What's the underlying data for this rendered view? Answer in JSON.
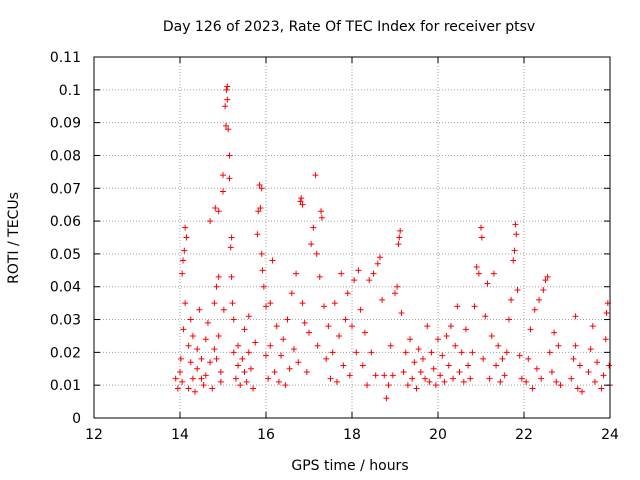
{
  "chart_data": {
    "type": "scatter",
    "title": "Day 126 of 2023, Rate Of TEC Index for receiver ptsv",
    "xlabel": "GPS time / hours",
    "ylabel": "ROTI / TECUs",
    "xlim": [
      12,
      24
    ],
    "ylim": [
      0,
      0.11
    ],
    "xticks": [
      "12",
      "14",
      "16",
      "18",
      "20",
      "22",
      "24"
    ],
    "yticks": [
      "0",
      "0.01",
      "0.02",
      "0.03",
      "0.04",
      "0.05",
      "0.06",
      "0.07",
      "0.08",
      "0.09",
      "0.1",
      "0.11"
    ],
    "grid": true,
    "marker": "plus",
    "color": "#ff0000",
    "series": [
      {
        "points": [
          [
            13.9,
            0.012
          ],
          [
            13.95,
            0.009
          ],
          [
            14.0,
            0.014
          ],
          [
            14.02,
            0.018
          ],
          [
            14.05,
            0.011
          ],
          [
            14.05,
            0.044
          ],
          [
            14.07,
            0.048
          ],
          [
            14.08,
            0.027
          ],
          [
            14.1,
            0.051
          ],
          [
            14.12,
            0.058
          ],
          [
            14.15,
            0.055
          ],
          [
            14.12,
            0.035
          ],
          [
            14.2,
            0.022
          ],
          [
            14.2,
            0.009
          ],
          [
            14.25,
            0.017
          ],
          [
            14.25,
            0.03
          ],
          [
            14.3,
            0.012
          ],
          [
            14.3,
            0.025
          ],
          [
            14.35,
            0.008
          ],
          [
            14.4,
            0.015
          ],
          [
            14.4,
            0.021
          ],
          [
            14.45,
            0.033
          ],
          [
            14.5,
            0.012
          ],
          [
            14.5,
            0.018
          ],
          [
            14.55,
            0.01
          ],
          [
            14.6,
            0.024
          ],
          [
            14.6,
            0.013
          ],
          [
            14.65,
            0.029
          ],
          [
            14.7,
            0.017
          ],
          [
            14.7,
            0.06
          ],
          [
            14.75,
            0.009
          ],
          [
            14.8,
            0.021
          ],
          [
            14.8,
            0.035
          ],
          [
            14.82,
            0.064
          ],
          [
            14.85,
            0.04
          ],
          [
            14.85,
            0.018
          ],
          [
            14.9,
            0.025
          ],
          [
            14.9,
            0.043
          ],
          [
            14.9,
            0.063
          ],
          [
            14.95,
            0.014
          ],
          [
            14.95,
            0.011
          ],
          [
            15.0,
            0.069
          ],
          [
            15.0,
            0.074
          ],
          [
            15.02,
            0.033
          ],
          [
            15.05,
            0.095
          ],
          [
            15.07,
            0.089
          ],
          [
            15.08,
            0.1
          ],
          [
            15.1,
            0.101
          ],
          [
            15.1,
            0.097
          ],
          [
            15.12,
            0.088
          ],
          [
            15.15,
            0.08
          ],
          [
            15.15,
            0.073
          ],
          [
            15.18,
            0.052
          ],
          [
            15.2,
            0.055
          ],
          [
            15.2,
            0.043
          ],
          [
            15.22,
            0.035
          ],
          [
            15.25,
            0.02
          ],
          [
            15.25,
            0.03
          ],
          [
            15.3,
            0.012
          ],
          [
            15.35,
            0.016
          ],
          [
            15.35,
            0.022
          ],
          [
            15.4,
            0.01
          ],
          [
            15.45,
            0.018
          ],
          [
            15.5,
            0.014
          ],
          [
            15.5,
            0.027
          ],
          [
            15.55,
            0.011
          ],
          [
            15.6,
            0.02
          ],
          [
            15.6,
            0.031
          ],
          [
            15.65,
            0.015
          ],
          [
            15.7,
            0.009
          ],
          [
            15.75,
            0.023
          ],
          [
            15.8,
            0.056
          ],
          [
            15.82,
            0.063
          ],
          [
            15.85,
            0.071
          ],
          [
            15.87,
            0.064
          ],
          [
            15.9,
            0.07
          ],
          [
            15.9,
            0.05
          ],
          [
            15.92,
            0.045
          ],
          [
            15.95,
            0.04
          ],
          [
            16.0,
            0.034
          ],
          [
            16.0,
            0.019
          ],
          [
            16.05,
            0.012
          ],
          [
            16.1,
            0.022
          ],
          [
            16.1,
            0.035
          ],
          [
            16.15,
            0.048
          ],
          [
            16.2,
            0.014
          ],
          [
            16.25,
            0.028
          ],
          [
            16.3,
            0.011
          ],
          [
            16.35,
            0.019
          ],
          [
            16.4,
            0.024
          ],
          [
            16.45,
            0.01
          ],
          [
            16.5,
            0.03
          ],
          [
            16.55,
            0.015
          ],
          [
            16.6,
            0.038
          ],
          [
            16.65,
            0.021
          ],
          [
            16.7,
            0.044
          ],
          [
            16.75,
            0.017
          ],
          [
            16.8,
            0.066
          ],
          [
            16.82,
            0.067
          ],
          [
            16.85,
            0.065
          ],
          [
            16.85,
            0.035
          ],
          [
            16.9,
            0.029
          ],
          [
            16.95,
            0.014
          ],
          [
            17.0,
            0.026
          ],
          [
            17.05,
            0.053
          ],
          [
            17.1,
            0.058
          ],
          [
            17.15,
            0.074
          ],
          [
            17.18,
            0.05
          ],
          [
            17.2,
            0.022
          ],
          [
            17.25,
            0.043
          ],
          [
            17.28,
            0.063
          ],
          [
            17.3,
            0.061
          ],
          [
            17.35,
            0.034
          ],
          [
            17.4,
            0.018
          ],
          [
            17.45,
            0.028
          ],
          [
            17.5,
            0.012
          ],
          [
            17.55,
            0.02
          ],
          [
            17.6,
            0.035
          ],
          [
            17.65,
            0.011
          ],
          [
            17.7,
            0.025
          ],
          [
            17.75,
            0.044
          ],
          [
            17.8,
            0.016
          ],
          [
            17.85,
            0.03
          ],
          [
            17.9,
            0.038
          ],
          [
            17.95,
            0.013
          ],
          [
            18.0,
            0.028
          ],
          [
            18.05,
            0.042
          ],
          [
            18.1,
            0.02
          ],
          [
            18.15,
            0.045
          ],
          [
            18.2,
            0.033
          ],
          [
            18.25,
            0.016
          ],
          [
            18.3,
            0.026
          ],
          [
            18.35,
            0.01
          ],
          [
            18.4,
            0.042
          ],
          [
            18.45,
            0.02
          ],
          [
            18.5,
            0.044
          ],
          [
            18.55,
            0.013
          ],
          [
            18.6,
            0.047
          ],
          [
            18.65,
            0.049
          ],
          [
            18.7,
            0.036
          ],
          [
            18.75,
            0.013
          ],
          [
            18.8,
            0.006
          ],
          [
            18.85,
            0.01
          ],
          [
            18.9,
            0.022
          ],
          [
            18.95,
            0.013
          ],
          [
            19.0,
            0.038
          ],
          [
            19.05,
            0.04
          ],
          [
            19.08,
            0.053
          ],
          [
            19.1,
            0.055
          ],
          [
            19.12,
            0.057
          ],
          [
            19.15,
            0.032
          ],
          [
            19.2,
            0.014
          ],
          [
            19.25,
            0.02
          ],
          [
            19.3,
            0.01
          ],
          [
            19.35,
            0.024
          ],
          [
            19.4,
            0.012
          ],
          [
            19.45,
            0.017
          ],
          [
            19.5,
            0.009
          ],
          [
            19.55,
            0.021
          ],
          [
            19.6,
            0.014
          ],
          [
            19.65,
            0.018
          ],
          [
            19.7,
            0.012
          ],
          [
            19.75,
            0.028
          ],
          [
            19.8,
            0.011
          ],
          [
            19.85,
            0.02
          ],
          [
            19.9,
            0.015
          ],
          [
            19.95,
            0.01
          ],
          [
            20.0,
            0.024
          ],
          [
            20.05,
            0.013
          ],
          [
            20.1,
            0.019
          ],
          [
            20.15,
            0.011
          ],
          [
            20.2,
            0.025
          ],
          [
            20.25,
            0.016
          ],
          [
            20.3,
            0.028
          ],
          [
            20.35,
            0.012
          ],
          [
            20.4,
            0.022
          ],
          [
            20.45,
            0.034
          ],
          [
            20.5,
            0.014
          ],
          [
            20.55,
            0.02
          ],
          [
            20.6,
            0.011
          ],
          [
            20.65,
            0.027
          ],
          [
            20.7,
            0.016
          ],
          [
            20.75,
            0.012
          ],
          [
            20.8,
            0.02
          ],
          [
            20.85,
            0.034
          ],
          [
            20.9,
            0.046
          ],
          [
            20.95,
            0.044
          ],
          [
            21.0,
            0.058
          ],
          [
            21.02,
            0.055
          ],
          [
            21.05,
            0.018
          ],
          [
            21.1,
            0.031
          ],
          [
            21.15,
            0.041
          ],
          [
            21.2,
            0.012
          ],
          [
            21.25,
            0.025
          ],
          [
            21.3,
            0.044
          ],
          [
            21.35,
            0.016
          ],
          [
            21.4,
            0.022
          ],
          [
            21.45,
            0.011
          ],
          [
            21.5,
            0.018
          ],
          [
            21.55,
            0.013
          ],
          [
            21.6,
            0.02
          ],
          [
            21.65,
            0.03
          ],
          [
            21.7,
            0.036
          ],
          [
            21.75,
            0.048
          ],
          [
            21.78,
            0.051
          ],
          [
            21.8,
            0.059
          ],
          [
            21.82,
            0.056
          ],
          [
            21.85,
            0.039
          ],
          [
            21.9,
            0.019
          ],
          [
            21.95,
            0.012
          ],
          [
            22.05,
            0.011
          ],
          [
            22.1,
            0.018
          ],
          [
            22.15,
            0.027
          ],
          [
            22.2,
            0.009
          ],
          [
            22.25,
            0.033
          ],
          [
            22.3,
            0.015
          ],
          [
            22.35,
            0.036
          ],
          [
            22.4,
            0.012
          ],
          [
            22.45,
            0.039
          ],
          [
            22.5,
            0.042
          ],
          [
            22.55,
            0.043
          ],
          [
            22.6,
            0.02
          ],
          [
            22.65,
            0.014
          ],
          [
            22.7,
            0.026
          ],
          [
            22.75,
            0.011
          ],
          [
            22.8,
            0.022
          ],
          [
            22.85,
            0.01
          ],
          [
            23.1,
            0.012
          ],
          [
            23.15,
            0.018
          ],
          [
            23.2,
            0.022
          ],
          [
            23.2,
            0.031
          ],
          [
            23.25,
            0.009
          ],
          [
            23.3,
            0.016
          ],
          [
            23.35,
            0.008
          ],
          [
            23.5,
            0.014
          ],
          [
            23.55,
            0.021
          ],
          [
            23.6,
            0.028
          ],
          [
            23.65,
            0.011
          ],
          [
            23.7,
            0.017
          ],
          [
            23.8,
            0.009
          ],
          [
            23.85,
            0.013
          ],
          [
            23.9,
            0.024
          ],
          [
            23.92,
            0.032
          ],
          [
            23.95,
            0.035
          ],
          [
            23.98,
            0.016
          ],
          [
            24.0,
            0.01
          ]
        ]
      }
    ]
  }
}
